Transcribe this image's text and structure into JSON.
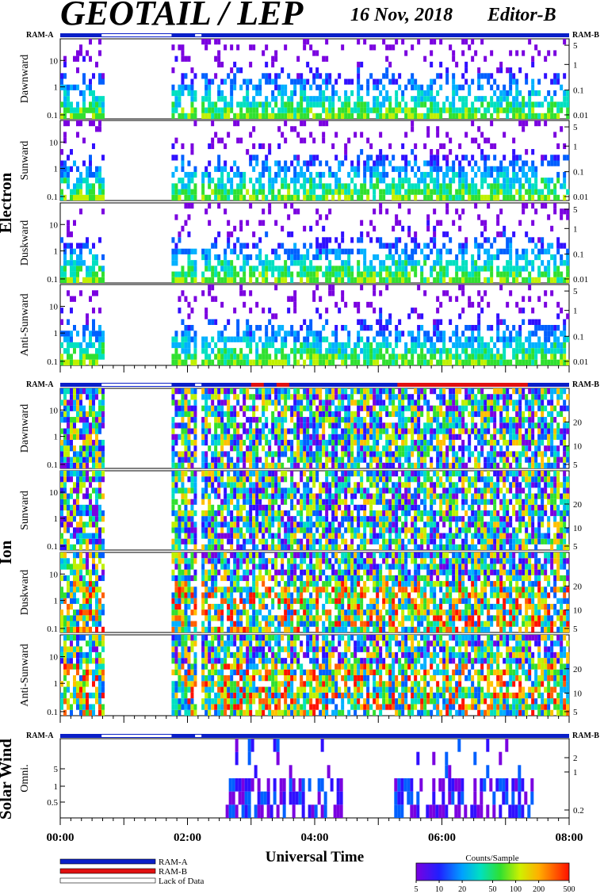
{
  "header": {
    "title": "GEOTAIL / LEP",
    "date": "16 Nov, 2018",
    "editor": "Editor-B"
  },
  "chart_data": {
    "type": "heatmap",
    "x_range": [
      "00:00",
      "08:00"
    ],
    "x_ticks": [
      "00:00",
      "02:00",
      "04:00",
      "06:00",
      "08:00"
    ],
    "xlabel": "Universal Time",
    "groups": [
      {
        "label": "Electron",
        "ram_a_label": "RAM-A",
        "ram_b_label": "RAM-B",
        "panels": [
          {
            "label": "Dawnward",
            "left_ticks": [
              "0.1",
              "1",
              "10"
            ],
            "right_ticks": [
              "0.01",
              "0.1",
              "1",
              "5"
            ]
          },
          {
            "label": "Sunward",
            "left_ticks": [
              "0.1",
              "1",
              "10"
            ],
            "right_ticks": [
              "0.01",
              "0.1",
              "1",
              "5"
            ]
          },
          {
            "label": "Duskward",
            "left_ticks": [
              "0.1",
              "1",
              "10"
            ],
            "right_ticks": [
              "0.01",
              "0.1",
              "1",
              "5"
            ]
          },
          {
            "label": "Anti-Sunward",
            "left_ticks": [
              "0.1",
              "1",
              "10"
            ],
            "right_ticks": [
              "0.01",
              "0.1",
              "1",
              "5"
            ]
          }
        ]
      },
      {
        "label": "Ion",
        "ram_a_label": "RAM-A",
        "ram_b_label": "RAM-B",
        "panels": [
          {
            "label": "Dawnward",
            "left_ticks": [
              "0.1",
              "1",
              "10"
            ],
            "right_ticks": [
              "5",
              "10",
              "20"
            ]
          },
          {
            "label": "Sunward",
            "left_ticks": [
              "0.1",
              "1",
              "10"
            ],
            "right_ticks": [
              "5",
              "10",
              "20"
            ]
          },
          {
            "label": "Duskward",
            "left_ticks": [
              "0.1",
              "1",
              "10"
            ],
            "right_ticks": [
              "5",
              "10",
              "20"
            ]
          },
          {
            "label": "Anti-Sunward",
            "left_ticks": [
              "0.1",
              "1",
              "10"
            ],
            "right_ticks": [
              "5",
              "10",
              "20"
            ]
          }
        ]
      },
      {
        "label": "Solar Wind",
        "ram_a_label": "RAM-A",
        "ram_b_label": "RAM-B",
        "panels": [
          {
            "label": "Omni.",
            "left_ticks": [
              "0.5",
              "1",
              "5"
            ],
            "right_ticks": [
              "0.2",
              "1",
              "2"
            ]
          }
        ]
      }
    ],
    "data_coverage_hours": {
      "electron_ion": [
        [
          0.0,
          0.65
        ],
        [
          1.75,
          2.12
        ],
        [
          2.22,
          8.0
        ]
      ],
      "solar_wind": [
        [
          2.6,
          4.4
        ],
        [
          5.25,
          7.4
        ]
      ],
      "lack_of_data": [
        [
          0.65,
          1.75
        ],
        [
          2.12,
          2.22
        ]
      ],
      "ion_ram_b": [
        [
          3.0,
          3.2
        ],
        [
          3.4,
          3.6
        ],
        [
          5.3,
          7.35
        ]
      ]
    },
    "legend": {
      "items": [
        {
          "label": "RAM-A",
          "color": "#0a1fc8"
        },
        {
          "label": "RAM-B",
          "color": "#e01010"
        },
        {
          "label": "Lack of Data",
          "color": "#ffffff"
        }
      ]
    },
    "colorbar": {
      "title": "Counts/Sample",
      "ticks": [
        "5",
        "10",
        "20",
        "50",
        "100",
        "200",
        "500"
      ],
      "range": [
        5,
        500
      ],
      "scale": "log"
    }
  }
}
